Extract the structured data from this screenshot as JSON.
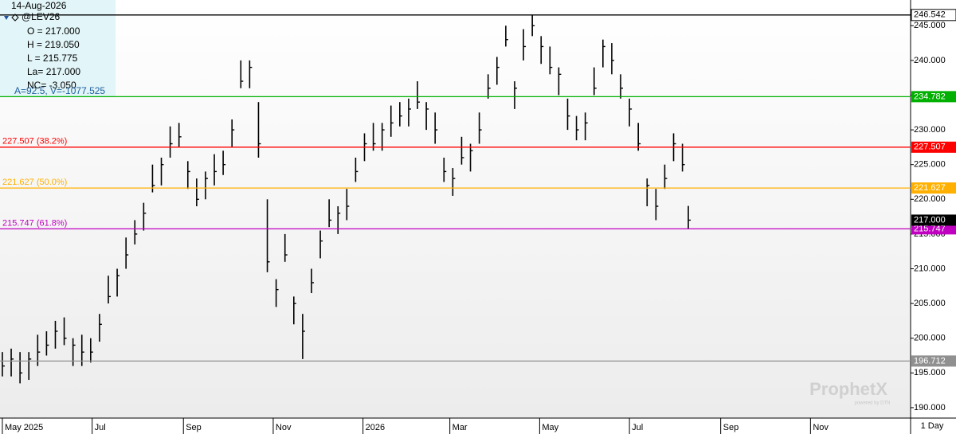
{
  "chart_data": {
    "type": "ohlc",
    "symbol": "@LEV26",
    "info": [
      "14-Aug-2026",
      "O = 217.000",
      "H = 219.050",
      "L = 215.775",
      "La= 217.000",
      "NC= -3.050",
      "A=92.5, V=-1077.525"
    ],
    "period_label": "1 Day",
    "watermark": "ProphetX",
    "watermark_sub": "powered by DTN",
    "color": "#000000",
    "x": [
      0,
      6,
      12,
      18,
      24,
      30,
      36,
      42,
      48,
      54,
      60,
      66,
      72,
      78,
      84,
      90,
      96,
      102,
      108,
      114,
      120,
      126,
      132,
      138,
      144,
      150,
      156,
      162,
      168,
      174,
      180,
      186,
      192,
      198,
      204,
      210,
      216,
      222,
      228,
      234,
      240,
      246,
      252,
      258,
      264,
      270,
      276,
      282,
      288,
      294,
      300,
      306,
      312,
      318,
      324,
      330,
      336,
      342,
      348,
      354,
      360,
      366,
      372,
      378,
      384,
      390,
      396,
      402,
      408,
      414,
      420,
      426,
      432,
      438,
      444,
      450,
      456,
      462,
      466
    ],
    "high": [
      198,
      198.5,
      198,
      198,
      200.5,
      201,
      202.5,
      203,
      200,
      200.5,
      200,
      203.5,
      209,
      210,
      214.5,
      217,
      219.5,
      225,
      226,
      230.5,
      231,
      225.5,
      223,
      224,
      226.5,
      227,
      231.5,
      240,
      240,
      234,
      220,
      208.5,
      215,
      206,
      203.5,
      210,
      215.5,
      220,
      219,
      221.5,
      226,
      229.5,
      231,
      231,
      233.5,
      234,
      234.5,
      237,
      234,
      232.5,
      226,
      224.5,
      229,
      228,
      232.5,
      238,
      240.5,
      245,
      237,
      244.5,
      246.5,
      243.5,
      242,
      239,
      234.5,
      232,
      232.5,
      239,
      243,
      242.5,
      238,
      234.5,
      231,
      223,
      221.5,
      225,
      229.5,
      228,
      219.05
    ],
    "low": [
      194.5,
      194.5,
      193.5,
      194,
      196,
      197.5,
      198.5,
      199,
      196,
      196,
      196.5,
      199.5,
      205,
      206,
      210,
      213.5,
      215.5,
      221,
      222,
      226,
      227.5,
      221.5,
      219,
      220,
      222,
      223.5,
      227.5,
      236,
      236,
      226,
      209.5,
      204.5,
      211,
      202,
      197,
      206.5,
      211.5,
      216,
      215,
      217,
      222.5,
      225.5,
      227,
      227,
      229,
      230.5,
      230.5,
      233,
      230,
      228,
      222.5,
      220.5,
      225,
      224,
      228,
      234.5,
      236.5,
      242,
      233,
      240,
      243.5,
      239.5,
      238,
      235,
      230,
      228.5,
      228.5,
      235,
      239,
      238,
      234.5,
      230.5,
      227,
      219,
      217,
      221.5,
      225.5,
      224,
      215.775
    ],
    "close": [
      196,
      197,
      195,
      197,
      198,
      199,
      201,
      200,
      199,
      198,
      198,
      202,
      206,
      209,
      212,
      215,
      218,
      222,
      225,
      228,
      229,
      224,
      220,
      223,
      224,
      225,
      230,
      237,
      239,
      228,
      211,
      207,
      212,
      205,
      201,
      208,
      214,
      217,
      218,
      219,
      224,
      228,
      228,
      230,
      231,
      232,
      233,
      234,
      233,
      230,
      224,
      223,
      226,
      227,
      230,
      236,
      239,
      243,
      236,
      242,
      245,
      242,
      239,
      238,
      232,
      230,
      231,
      236,
      242,
      240,
      236,
      233,
      228,
      222,
      219,
      223,
      228,
      225,
      217
    ],
    "last": {
      "value": 217,
      "label": "217.000"
    },
    "levels": [
      {
        "value": 246.542,
        "color": "#000000"
      },
      {
        "value": 234.782,
        "color": "#00b000"
      },
      {
        "value": 227.507,
        "color": "#ff0000",
        "label": "227.507 (38.2%)"
      },
      {
        "value": 221.627,
        "color": "#ffb000",
        "label": "221.627 (50.0%)"
      },
      {
        "value": 215.747,
        "color": "#c000c0",
        "label": "215.747 (61.8%)"
      },
      {
        "value": 196.712,
        "color": "#909090"
      }
    ],
    "xlim": [
      -1.6,
      617
    ],
    "xticks": [
      {
        "value": 0,
        "label": "May 2025"
      },
      {
        "value": 61,
        "label": "Jul"
      },
      {
        "value": 123,
        "label": "Sep"
      },
      {
        "value": 184,
        "label": "Nov"
      },
      {
        "value": 245,
        "label": "2026"
      },
      {
        "value": 304,
        "label": "Mar"
      },
      {
        "value": 365,
        "label": "May"
      },
      {
        "value": 426,
        "label": "Jul"
      },
      {
        "value": 488,
        "label": "Sep"
      },
      {
        "value": 549,
        "label": "Nov"
      }
    ],
    "ylim": [
      188.5,
      248.7
    ],
    "yticks": [
      {
        "value": 190,
        "label": "190.000"
      },
      {
        "value": 195,
        "label": "195.000"
      },
      {
        "value": 200,
        "label": "200.000"
      },
      {
        "value": 205,
        "label": "205.000"
      },
      {
        "value": 210,
        "label": "210.000"
      },
      {
        "value": 215,
        "label": "215.000"
      },
      {
        "value": 220,
        "label": "220.000"
      },
      {
        "value": 225,
        "label": "225.000"
      },
      {
        "value": 230,
        "label": "230.000"
      },
      {
        "value": 235,
        "label": "235.000"
      },
      {
        "value": 240,
        "label": "240.000"
      },
      {
        "value": 245,
        "label": "245.000"
      }
    ]
  }
}
